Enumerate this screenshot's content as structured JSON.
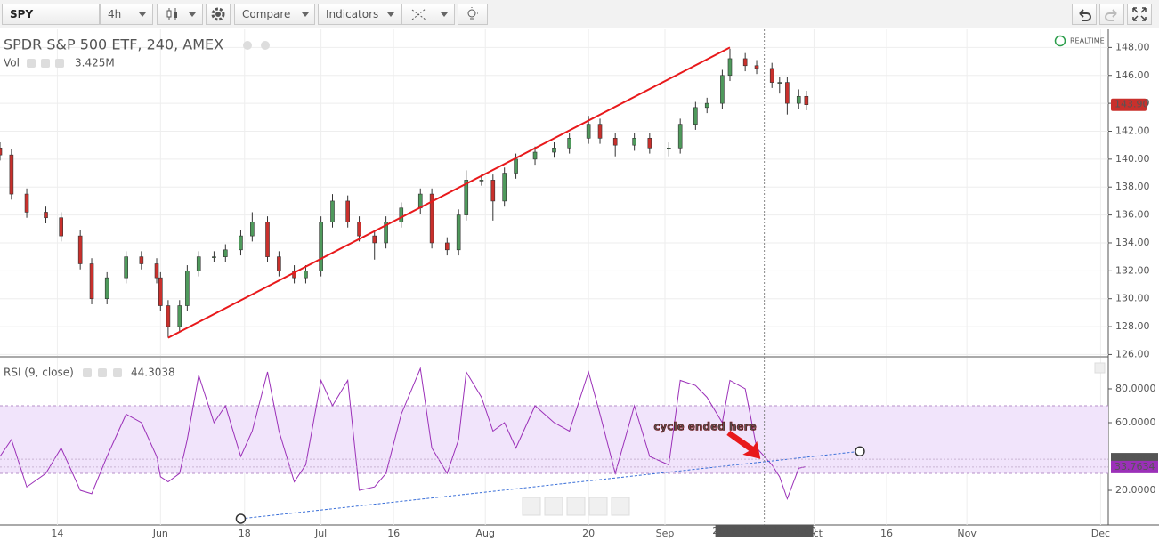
{
  "toolbar": {
    "symbol": "SPY",
    "interval": "4h",
    "compare": "Compare",
    "indicators": "Indicators"
  },
  "chart_data": [
    {
      "type": "candlestick",
      "title": "SPDR S&P 500 ETF, 240, AMEX",
      "volume_label": "Vol",
      "volume_value": "3.425M",
      "realtime": "REALTIME",
      "up_color": "#4f9a5c",
      "down_color": "#c9302c",
      "x": [
        0,
        3,
        7,
        12,
        16,
        21,
        24,
        28,
        33,
        37,
        41,
        42,
        44,
        47,
        49,
        52,
        56,
        59,
        63,
        66,
        70,
        73,
        77,
        80,
        84,
        87,
        91,
        94,
        98,
        101,
        105,
        110,
        113,
        117,
        120,
        122,
        126,
        129,
        132,
        135,
        140,
        145,
        149,
        154,
        157,
        161,
        166,
        170,
        175,
        178,
        182,
        185,
        189,
        191,
        195,
        198,
        202,
        204,
        206,
        209,
        211
      ],
      "open": [
        140.8,
        140.3,
        137.5,
        136.2,
        135.8,
        134.5,
        132.5,
        130,
        131.5,
        133,
        132.5,
        131.5,
        129.5,
        128,
        129.5,
        132,
        133,
        133,
        133.5,
        134.5,
        135.5,
        133,
        132,
        131.5,
        132,
        135.5,
        137,
        135.5,
        134.5,
        134,
        135.5,
        136.5,
        137.5,
        134,
        133.5,
        136,
        138.5,
        138.5,
        137,
        139,
        140,
        140.5,
        140.8,
        141.5,
        142.5,
        141.5,
        141,
        141.5,
        140.8,
        140.8,
        142.5,
        143.7,
        144,
        146,
        147.2,
        146.7,
        146.5,
        145.5,
        145.5,
        144,
        144.5
      ],
      "high": [
        141.2,
        140.7,
        137.9,
        136.6,
        136.2,
        134.9,
        132.9,
        131.9,
        133.4,
        133.4,
        132.9,
        131.9,
        129.9,
        129.9,
        132.4,
        133.4,
        133.4,
        133.9,
        134.9,
        136.2,
        135.9,
        133.4,
        132.4,
        132.4,
        135.9,
        137.5,
        137.4,
        135.9,
        134.9,
        135.9,
        136.9,
        137.9,
        137.9,
        134.4,
        136.4,
        139.2,
        138.9,
        138.9,
        139.4,
        140.4,
        140.9,
        141.2,
        141.9,
        143.1,
        142.9,
        141.9,
        141.9,
        141.9,
        141.2,
        142.9,
        144.1,
        144.4,
        146.4,
        147.9,
        147.6,
        147.1,
        146.9,
        145.9,
        145.9,
        145,
        144.9
      ],
      "low": [
        139.9,
        137.1,
        135.8,
        135.4,
        134.1,
        132.1,
        129.6,
        129.6,
        131.1,
        132.1,
        131.1,
        129.1,
        127.2,
        127.6,
        129.1,
        131.6,
        132.6,
        132.6,
        133.1,
        134.1,
        132.6,
        131.6,
        131.1,
        131.1,
        131.6,
        135.1,
        135.1,
        134.1,
        132.8,
        133.6,
        135.1,
        136.1,
        133.6,
        133.1,
        133.1,
        135.6,
        138.1,
        135.6,
        136.6,
        138.6,
        139.6,
        140.1,
        140.4,
        141.1,
        141.1,
        140.2,
        140.6,
        140.4,
        140.2,
        140.4,
        142.1,
        143.3,
        143.6,
        145.6,
        146.3,
        146.1,
        145.1,
        144.7,
        143.2,
        143.6,
        143.5
      ],
      "close": [
        140.3,
        137.5,
        136.2,
        135.8,
        134.5,
        132.5,
        130,
        131.5,
        133,
        132.5,
        131.5,
        129.5,
        128,
        129.5,
        132,
        133,
        133,
        133.5,
        134.5,
        135.5,
        133,
        132,
        131.5,
        132,
        135.5,
        137,
        135.5,
        134.5,
        134,
        135.5,
        136.5,
        137.5,
        134,
        133.5,
        136,
        138.5,
        138.5,
        137,
        139,
        140,
        140.5,
        140.8,
        141.5,
        142.5,
        141.5,
        141,
        141.5,
        140.8,
        140.8,
        142.5,
        143.7,
        144,
        146,
        147.2,
        146.7,
        146.5,
        145.5,
        145.5,
        144,
        144.5,
        143.9
      ],
      "xlim": [
        0,
        290
      ],
      "ylim": [
        125.9,
        149.3
      ],
      "yticks": [
        {
          "value": 126,
          "label": "126.00"
        },
        {
          "value": 128,
          "label": "128.00"
        },
        {
          "value": 130,
          "label": "130.00"
        },
        {
          "value": 132,
          "label": "132.00"
        },
        {
          "value": 134,
          "label": "134.00"
        },
        {
          "value": 136,
          "label": "136.00"
        },
        {
          "value": 138,
          "label": "138.00"
        },
        {
          "value": 140,
          "label": "140.00"
        },
        {
          "value": 142,
          "label": "142.00"
        },
        {
          "value": 144,
          "label": "144.00"
        },
        {
          "value": 146,
          "label": "146.00"
        },
        {
          "value": 148,
          "label": "148.00"
        }
      ],
      "last_price": {
        "value": 143.9,
        "label": "143.90"
      },
      "trendline": {
        "x": [
          44,
          191
        ],
        "y": [
          127.2,
          148
        ],
        "color": "#e8191b"
      }
    },
    {
      "type": "line",
      "title": "RSI (9, close)",
      "value_label": 44.3038,
      "color": "#9b30b8",
      "x": [
        0,
        3,
        7,
        12,
        16,
        21,
        24,
        28,
        33,
        37,
        41,
        42,
        44,
        47,
        49,
        52,
        56,
        59,
        63,
        66,
        70,
        73,
        77,
        80,
        84,
        87,
        91,
        94,
        98,
        101,
        105,
        110,
        113,
        117,
        120,
        122,
        126,
        129,
        132,
        135,
        140,
        145,
        149,
        154,
        157,
        161,
        166,
        170,
        175,
        178,
        182,
        185,
        189,
        191,
        195,
        198,
        202,
        204,
        206,
        209,
        211
      ],
      "values": [
        40,
        50,
        22,
        30,
        45,
        20,
        18,
        40,
        65,
        60,
        40,
        28,
        25,
        30,
        50,
        88,
        60,
        70,
        40,
        55,
        90,
        55,
        25,
        35,
        85,
        70,
        85,
        20,
        22,
        30,
        65,
        92,
        45,
        30,
        50,
        90,
        75,
        55,
        60,
        45,
        70,
        60,
        55,
        90,
        65,
        30,
        70,
        40,
        35,
        85,
        82,
        75,
        60,
        85,
        80,
        45,
        35,
        28,
        15,
        33,
        34
      ],
      "xlim": [
        0,
        290
      ],
      "ylim": [
        -0.5,
        98.4
      ],
      "band": [
        30,
        70
      ],
      "yticks": [
        {
          "value": 20,
          "label": "20.0000"
        },
        {
          "value": 60,
          "label": "60.0000"
        },
        {
          "value": 80,
          "label": "80.0000"
        }
      ],
      "xticks": [
        {
          "value": 15,
          "label": "14"
        },
        {
          "value": 42,
          "label": "Jun"
        },
        {
          "value": 64,
          "label": "18"
        },
        {
          "value": 84,
          "label": "Jul"
        },
        {
          "value": 103,
          "label": "16"
        },
        {
          "value": 127,
          "label": "Aug"
        },
        {
          "value": 154,
          "label": "20"
        },
        {
          "value": 174,
          "label": "Sep"
        },
        {
          "value": 213,
          "label": "Oct"
        },
        {
          "value": 232,
          "label": "16"
        },
        {
          "value": 253,
          "label": "Nov"
        },
        {
          "value": 288,
          "label": "Dec"
        }
      ],
      "price_tags": [
        38.3806,
        33.7634
      ],
      "trendline": {
        "x": [
          63,
          225
        ],
        "y": [
          3.2,
          43
        ],
        "color": "#3a6fd8"
      },
      "annotation": {
        "text": "cycle ended here",
        "x": 199,
        "y": 38.5
      },
      "crosshair": {
        "x": 200,
        "label": "2012-09-20 17:30:00"
      }
    }
  ]
}
